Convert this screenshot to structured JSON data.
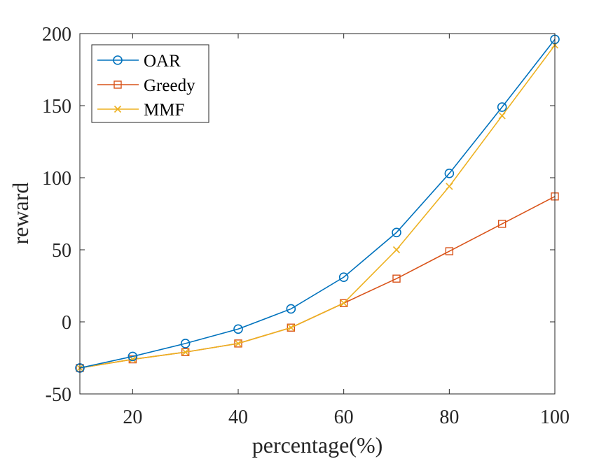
{
  "chart_data": {
    "type": "line",
    "title": "",
    "xlabel": "percentage(%)",
    "ylabel": "reward",
    "xlim": [
      10,
      100
    ],
    "ylim": [
      -50,
      200
    ],
    "xticks": [
      20,
      40,
      60,
      80,
      100
    ],
    "yticks": [
      -50,
      0,
      50,
      100,
      150,
      200
    ],
    "grid": false,
    "legend_position": "top-left",
    "x": [
      10,
      20,
      30,
      40,
      50,
      60,
      70,
      80,
      90,
      100
    ],
    "series": [
      {
        "name": "OAR",
        "marker": "circle",
        "color": "#0072BD",
        "values": [
          -32,
          -24,
          -15,
          -5,
          9,
          31,
          62,
          103,
          149,
          196
        ]
      },
      {
        "name": "Greedy",
        "marker": "square",
        "color": "#D95319",
        "values": [
          -32,
          -26,
          -21,
          -15,
          -4,
          13,
          30,
          49,
          68,
          87
        ]
      },
      {
        "name": "MMF",
        "marker": "x",
        "color": "#EDB120",
        "values": [
          -32,
          -26,
          -21,
          -15,
          -4,
          13,
          50,
          94,
          143,
          192
        ]
      }
    ]
  }
}
